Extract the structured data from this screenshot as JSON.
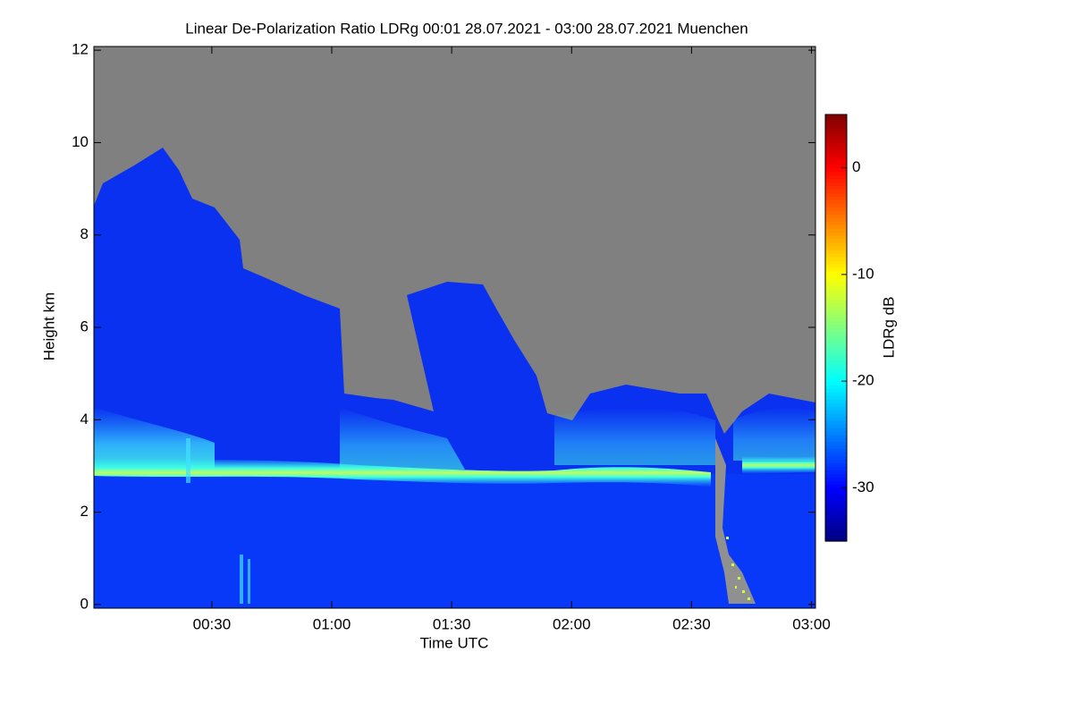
{
  "chart_data": {
    "type": "heatmap",
    "title": "Linear De-Polarization Ratio LDRg   00:01 28.07.2021 - 03:00 28.07.2021 Muenchen",
    "xlabel": "Time UTC",
    "ylabel": "Height km",
    "colorbar_label": "LDRg dB",
    "xlim": [
      0.5,
      181
    ],
    "xticks": [
      {
        "value": 30,
        "label": "00:30"
      },
      {
        "value": 60,
        "label": "01:00"
      },
      {
        "value": 90,
        "label": "01:30"
      },
      {
        "value": 120,
        "label": "02:00"
      },
      {
        "value": 150,
        "label": "02:30"
      },
      {
        "value": 180,
        "label": "03:00"
      }
    ],
    "ylim": [
      -0.08,
      12.08
    ],
    "yticks": [
      0,
      2,
      4,
      6,
      8,
      10,
      12
    ],
    "clim": [
      -35,
      5
    ],
    "cticks": [
      -30,
      -20,
      -10,
      0
    ],
    "colormap": "jet"
  }
}
